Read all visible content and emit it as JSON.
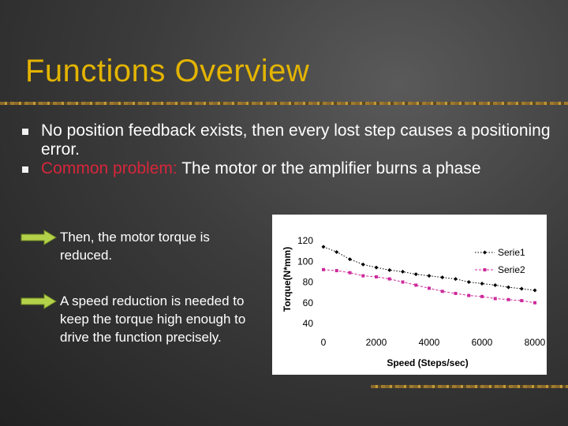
{
  "slide": {
    "title": "Functions Overview",
    "bullets": [
      {
        "text": "No position feedback exists, then every lost step causes a positioning error."
      },
      {
        "highlight": "Common problem:",
        "text": " The motor or the amplifier burns a phase"
      }
    ],
    "subpoints": [
      {
        "text": "Then, the motor torque is reduced."
      },
      {
        "text": "A speed reduction is needed to keep the torque high enough to drive the function precisely."
      }
    ],
    "colors": {
      "title": "#e3b400",
      "highlight": "#d7263b",
      "arrow": "#b4d14a"
    }
  },
  "chart_data": {
    "type": "line",
    "xlabel": "Speed (Steps/sec)",
    "ylabel": "Torque(N*mm)",
    "xlim": [
      0,
      8000
    ],
    "ylim": [
      40,
      120
    ],
    "xticks": [
      0,
      2000,
      4000,
      6000,
      8000
    ],
    "yticks": [
      40,
      60,
      80,
      100,
      120
    ],
    "grid": false,
    "legend": "top-right",
    "series": [
      {
        "name": "Serie1",
        "color": "#000000",
        "marker": "diamond",
        "x": [
          0,
          500,
          1000,
          1500,
          2000,
          2500,
          3000,
          3500,
          4000,
          4500,
          5000,
          5500,
          6000,
          6500,
          7000,
          7500,
          8000
        ],
        "y": [
          114,
          109,
          102,
          97,
          94,
          91.5,
          90,
          87.5,
          86,
          84.5,
          83,
          80,
          78.5,
          77,
          75,
          73.5,
          72
        ]
      },
      {
        "name": "Serie2",
        "color": "#cc2a9a",
        "marker": "square",
        "x": [
          0,
          500,
          1000,
          1500,
          2000,
          2500,
          3000,
          3500,
          4000,
          4500,
          5000,
          5500,
          6000,
          6500,
          7000,
          7500,
          8000
        ],
        "y": [
          92,
          91,
          89,
          86,
          85,
          83,
          80,
          77,
          74,
          71,
          69,
          67,
          66,
          64,
          63,
          62,
          60
        ]
      }
    ]
  }
}
